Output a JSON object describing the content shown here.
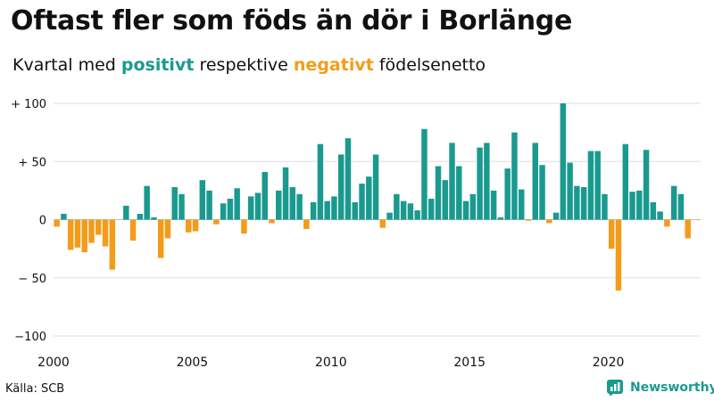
{
  "header": {
    "title": "Oftast fler som föds än dör i Borlänge",
    "subtitle_prefix": "Kvartal med ",
    "subtitle_pos": "positivt",
    "subtitle_mid": " respektive ",
    "subtitle_neg": "negativt",
    "subtitle_suffix": " födelsenetto"
  },
  "footer": {
    "source": "Källa: SCB",
    "brand": "Newsworthy"
  },
  "colors": {
    "positive": "#1a9a8f",
    "negative": "#f39c1a",
    "grid": "#dddddd",
    "text": "#111111"
  },
  "chart_data": {
    "type": "bar",
    "x_start_year": 2000,
    "x_end_year": 2022,
    "periods_per_year": 4,
    "x_ticks": [
      "2000",
      "2005",
      "2010",
      "2015",
      "2020"
    ],
    "y_ticks": [
      {
        "value": 100,
        "label": "+ 100"
      },
      {
        "value": 50,
        "label": "+  50"
      },
      {
        "value": 0,
        "label": "0"
      },
      {
        "value": -50,
        "label": "− 50"
      },
      {
        "value": -100,
        "label": "−100"
      }
    ],
    "ylim": [
      -100,
      100
    ],
    "grid": true,
    "values": [
      -6,
      5,
      -26,
      -24,
      -28,
      -20,
      -13,
      -23,
      -43,
      0,
      12,
      -18,
      5,
      29,
      2,
      -33,
      -16,
      28,
      22,
      -11,
      -10,
      34,
      25,
      -4,
      14,
      18,
      27,
      -12,
      20,
      23,
      41,
      -3,
      25,
      45,
      28,
      22,
      -8,
      15,
      65,
      16,
      20,
      56,
      70,
      15,
      31,
      37,
      56,
      -7,
      6,
      22,
      16,
      14,
      8,
      78,
      18,
      46,
      34,
      66,
      46,
      16,
      22,
      62,
      66,
      25,
      2,
      44,
      75,
      26,
      -1,
      66,
      47,
      -3,
      6,
      100,
      49,
      29,
      28,
      59,
      59,
      22,
      -25,
      -61,
      65,
      24,
      25,
      60,
      15,
      7,
      -6,
      29,
      22,
      -16
    ]
  }
}
